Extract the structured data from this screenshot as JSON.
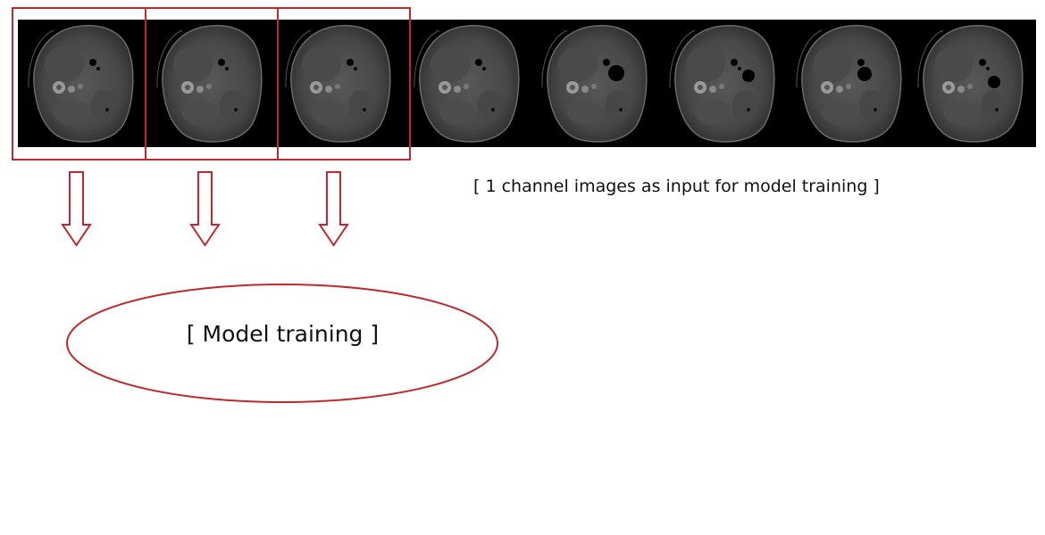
{
  "caption": "[ 1 channel images as input for model training ]",
  "model_label": "[ Model training ]",
  "slice_count": 8,
  "selected_slice_count": 3,
  "colors": {
    "accent": "#c0282d",
    "strip_background": "#000000",
    "body_outer": "#3e3e3e",
    "body_inner": "#525252"
  },
  "icons": [
    "ct-slice-image",
    "down-arrow-icon"
  ]
}
